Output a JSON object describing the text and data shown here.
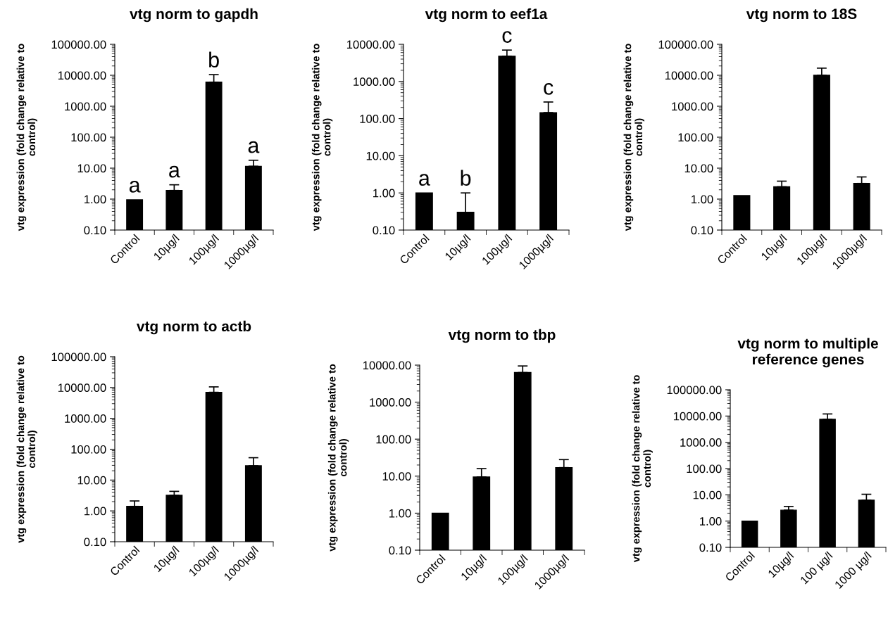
{
  "chart_data": [
    {
      "type": "bar",
      "title": "vtg norm to gapdh",
      "ylabel": "vtg expression (fold change relative to\ncontrol)",
      "categories": [
        "Control",
        "10µg/l",
        "100µg/l",
        "1000µg/l"
      ],
      "values": [
        0.95,
        1.9,
        6000,
        11.5
      ],
      "errors": [
        null,
        [
          1.9,
          2.9
        ],
        [
          6000,
          10500
        ],
        [
          11.5,
          18
        ]
      ],
      "color": "#000000",
      "log": true,
      "ylim": [
        0.1,
        100000
      ],
      "yticks": [
        {
          "value": 0.1,
          "label": "0.10"
        },
        {
          "value": 1,
          "label": "1.00"
        },
        {
          "value": 10,
          "label": "10.00"
        },
        {
          "value": 100,
          "label": "100.00"
        },
        {
          "value": 1000,
          "label": "1000.00"
        },
        {
          "value": 10000,
          "label": "10000.00"
        },
        {
          "value": 100000,
          "label": "100000.00"
        }
      ],
      "annotations": [
        "a",
        "a",
        "b",
        "a"
      ]
    },
    {
      "type": "bar",
      "title": "vtg norm to eef1a",
      "ylabel": "vtg expression (fold change relative to\ncontrol)",
      "categories": [
        "Control",
        "10µg/l",
        "100µg/l",
        "1000µg/l"
      ],
      "values": [
        1.0,
        0.3,
        4800,
        145
      ],
      "errors": [
        null,
        [
          0.3,
          1.0
        ],
        [
          4800,
          7000
        ],
        [
          145,
          280
        ]
      ],
      "color": "#000000",
      "log": true,
      "ylim": [
        0.1,
        10000
      ],
      "yticks": [
        {
          "value": 0.1,
          "label": "0.10"
        },
        {
          "value": 1,
          "label": "1.00"
        },
        {
          "value": 10,
          "label": "10.00"
        },
        {
          "value": 100,
          "label": "100.00"
        },
        {
          "value": 1000,
          "label": "1000.00"
        },
        {
          "value": 10000,
          "label": "10000.00"
        }
      ],
      "annotations": [
        "a",
        "b",
        "c",
        "c"
      ]
    },
    {
      "type": "bar",
      "title": "vtg norm to 18S",
      "ylabel": "vtg expression (fold change relative to\ncontrol)",
      "categories": [
        "Control",
        "10µg/l",
        "100µg/l",
        "1000µg/l"
      ],
      "values": [
        1.3,
        2.5,
        10000,
        3.2
      ],
      "errors": [
        null,
        [
          2.5,
          3.8
        ],
        [
          10000,
          17000
        ],
        [
          3.2,
          5.2
        ]
      ],
      "color": "#000000",
      "log": true,
      "ylim": [
        0.1,
        100000
      ],
      "yticks": [
        {
          "value": 0.1,
          "label": "0.10"
        },
        {
          "value": 1,
          "label": "1.00"
        },
        {
          "value": 10,
          "label": "10.00"
        },
        {
          "value": 100,
          "label": "100.00"
        },
        {
          "value": 1000,
          "label": "1000.00"
        },
        {
          "value": 10000,
          "label": "10000.00"
        },
        {
          "value": 100000,
          "label": "100000.00"
        }
      ]
    },
    {
      "type": "bar",
      "title": "vtg norm to actb",
      "ylabel": "vtg expression (fold change relative to\ncontrol)",
      "categories": [
        "Control",
        "10µg/l",
        "100µg/l",
        "1000µg/l"
      ],
      "values": [
        1.4,
        3.2,
        7000,
        29
      ],
      "errors": [
        [
          1.4,
          2.1
        ],
        [
          3.2,
          4.3
        ],
        [
          7000,
          10500
        ],
        [
          29,
          53
        ]
      ],
      "color": "#000000",
      "log": true,
      "ylim": [
        0.1,
        100000
      ],
      "yticks": [
        {
          "value": 0.1,
          "label": "0.10"
        },
        {
          "value": 1,
          "label": "1.00"
        },
        {
          "value": 10,
          "label": "10.00"
        },
        {
          "value": 100,
          "label": "100.00"
        },
        {
          "value": 1000,
          "label": "1000.00"
        },
        {
          "value": 10000,
          "label": "10000.00"
        },
        {
          "value": 100000,
          "label": "100000.00"
        }
      ]
    },
    {
      "type": "bar",
      "title": "vtg norm to tbp",
      "ylabel": "vtg expression (fold change relative to\ncontrol)",
      "categories": [
        "Control",
        "10µg/l",
        "100µg/l",
        "1000µg/l"
      ],
      "values": [
        1.0,
        9.5,
        6300,
        17
      ],
      "errors": [
        null,
        [
          9.5,
          16
        ],
        [
          6300,
          9500
        ],
        [
          17,
          28
        ]
      ],
      "color": "#000000",
      "log": true,
      "ylim": [
        0.1,
        10000
      ],
      "yticks": [
        {
          "value": 0.1,
          "label": "0.10"
        },
        {
          "value": 1,
          "label": "1.00"
        },
        {
          "value": 10,
          "label": "10.00"
        },
        {
          "value": 100,
          "label": "100.00"
        },
        {
          "value": 1000,
          "label": "1000.00"
        },
        {
          "value": 10000,
          "label": "10000.00"
        }
      ]
    },
    {
      "type": "bar",
      "title": "vtg norm to multiple\nreference genes",
      "ylabel": "vtg expression (fold change relative to\ncontrol)",
      "categories": [
        "Control",
        "10µg/l",
        "100 µg/l",
        "1000 µg/l"
      ],
      "values": [
        1.0,
        2.6,
        7500,
        6.3
      ],
      "errors": [
        null,
        [
          2.6,
          3.6
        ],
        [
          7500,
          12000
        ],
        [
          6.3,
          10.5
        ]
      ],
      "color": "#000000",
      "log": true,
      "ylim": [
        0.1,
        100000
      ],
      "yticks": [
        {
          "value": 0.1,
          "label": "0.10"
        },
        {
          "value": 1,
          "label": "1.00"
        },
        {
          "value": 10,
          "label": "10.00"
        },
        {
          "value": 100,
          "label": "100.00"
        },
        {
          "value": 1000,
          "label": "1000.00"
        },
        {
          "value": 10000,
          "label": "10000.00"
        },
        {
          "value": 100000,
          "label": "100000.00"
        }
      ]
    }
  ]
}
